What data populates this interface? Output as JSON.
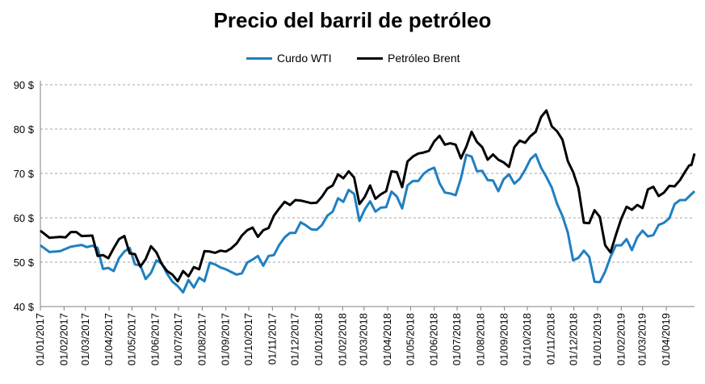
{
  "chart_data": {
    "type": "line",
    "title": "Precio del barril de petróleo",
    "xlabel": "",
    "ylabel": "",
    "ylim": [
      40,
      90
    ],
    "y_ticks": [
      "40 $",
      "50 $",
      "60 $",
      "70 $",
      "80 $",
      "90 $"
    ],
    "x_ticks": [
      "01/01/2017",
      "01/02/2017",
      "01/03/2017",
      "01/04/2017",
      "01/05/2017",
      "01/06/2017",
      "01/07/2017",
      "01/08/2017",
      "01/09/2017",
      "01/10/2017",
      "01/11/2017",
      "01/12/2017",
      "01/01/2018",
      "01/02/2018",
      "01/03/2018",
      "01/04/2018",
      "01/05/2018",
      "01/06/2018",
      "01/07/2018",
      "01/08/2018",
      "01/09/2018",
      "01/10/2018",
      "01/11/2018",
      "01/12/2018",
      "01/01/2019",
      "01/02/2019",
      "01/03/2019",
      "01/04/2019"
    ],
    "grid": "horizontal dashed",
    "legend_position": "top",
    "x_range": [
      "2017-01-01",
      "2019-05-08"
    ],
    "series": [
      {
        "name": "Curdo WTI",
        "color": "#1f7fc2",
        "points": [
          [
            "2017-01-01",
            53.8
          ],
          [
            "2017-01-13",
            52.3
          ],
          [
            "2017-01-27",
            52.5
          ],
          [
            "2017-02-10",
            53.5
          ],
          [
            "2017-02-24",
            53.9
          ],
          [
            "2017-03-03",
            53.4
          ],
          [
            "2017-03-10",
            53.7
          ],
          [
            "2017-03-17",
            53.2
          ],
          [
            "2017-03-24",
            48.5
          ],
          [
            "2017-03-31",
            48.7
          ],
          [
            "2017-04-07",
            48.0
          ],
          [
            "2017-04-14",
            50.9
          ],
          [
            "2017-04-21",
            52.4
          ],
          [
            "2017-04-28",
            53.2
          ],
          [
            "2017-05-05",
            49.5
          ],
          [
            "2017-05-12",
            49.3
          ],
          [
            "2017-05-19",
            46.2
          ],
          [
            "2017-05-26",
            47.6
          ],
          [
            "2017-06-02",
            50.4
          ],
          [
            "2017-06-09",
            49.7
          ],
          [
            "2017-06-16",
            47.4
          ],
          [
            "2017-06-23",
            45.6
          ],
          [
            "2017-06-30",
            44.6
          ],
          [
            "2017-07-07",
            43.2
          ],
          [
            "2017-07-14",
            46.0
          ],
          [
            "2017-07-21",
            44.3
          ],
          [
            "2017-07-28",
            46.5
          ],
          [
            "2017-08-04",
            45.7
          ],
          [
            "2017-08-11",
            49.9
          ],
          [
            "2017-08-18",
            49.5
          ],
          [
            "2017-08-25",
            48.8
          ],
          [
            "2017-09-01",
            48.4
          ],
          [
            "2017-09-08",
            47.8
          ],
          [
            "2017-09-15",
            47.2
          ],
          [
            "2017-09-22",
            47.5
          ],
          [
            "2017-09-29",
            49.9
          ],
          [
            "2017-10-06",
            50.6
          ],
          [
            "2017-10-13",
            51.4
          ],
          [
            "2017-10-20",
            49.2
          ],
          [
            "2017-10-27",
            51.4
          ],
          [
            "2017-11-03",
            51.6
          ],
          [
            "2017-11-10",
            53.9
          ],
          [
            "2017-11-17",
            55.6
          ],
          [
            "2017-11-24",
            56.6
          ],
          [
            "2017-12-01",
            56.6
          ],
          [
            "2017-12-08",
            59.0
          ],
          [
            "2017-12-15",
            58.3
          ],
          [
            "2017-12-22",
            57.4
          ],
          [
            "2017-12-29",
            57.3
          ],
          [
            "2018-01-05",
            58.4
          ],
          [
            "2018-01-12",
            60.5
          ],
          [
            "2018-01-19",
            61.4
          ],
          [
            "2018-01-26",
            64.4
          ],
          [
            "2018-02-02",
            63.6
          ],
          [
            "2018-02-09",
            66.3
          ],
          [
            "2018-02-16",
            65.4
          ],
          [
            "2018-02-23",
            59.3
          ],
          [
            "2018-03-02",
            61.9
          ],
          [
            "2018-03-09",
            63.7
          ],
          [
            "2018-03-16",
            61.4
          ],
          [
            "2018-03-23",
            62.3
          ],
          [
            "2018-03-30",
            62.4
          ],
          [
            "2018-04-06",
            65.9
          ],
          [
            "2018-04-13",
            64.8
          ],
          [
            "2018-04-20",
            62.1
          ],
          [
            "2018-04-27",
            67.3
          ],
          [
            "2018-05-04",
            68.3
          ],
          [
            "2018-05-11",
            68.3
          ],
          [
            "2018-05-18",
            69.9
          ],
          [
            "2018-05-25",
            70.8
          ],
          [
            "2018-06-01",
            71.3
          ],
          [
            "2018-06-08",
            67.8
          ],
          [
            "2018-06-15",
            65.7
          ],
          [
            "2018-06-22",
            65.5
          ],
          [
            "2018-06-29",
            65.1
          ],
          [
            "2018-07-06",
            68.9
          ],
          [
            "2018-07-13",
            74.2
          ],
          [
            "2018-07-20",
            73.8
          ],
          [
            "2018-07-27",
            70.5
          ],
          [
            "2018-08-03",
            70.6
          ],
          [
            "2018-08-10",
            68.5
          ],
          [
            "2018-08-17",
            68.4
          ],
          [
            "2018-08-24",
            66.0
          ],
          [
            "2018-08-31",
            68.7
          ],
          [
            "2018-09-07",
            69.8
          ],
          [
            "2018-09-14",
            67.7
          ],
          [
            "2018-09-21",
            68.8
          ],
          [
            "2018-09-28",
            70.8
          ],
          [
            "2018-10-05",
            73.2
          ],
          [
            "2018-10-12",
            74.3
          ],
          [
            "2018-10-19",
            71.3
          ],
          [
            "2018-10-26",
            69.2
          ],
          [
            "2018-11-02",
            66.8
          ],
          [
            "2018-11-09",
            63.1
          ],
          [
            "2018-11-16",
            60.4
          ],
          [
            "2018-11-23",
            56.7
          ],
          [
            "2018-11-30",
            50.4
          ],
          [
            "2018-12-07",
            51.0
          ],
          [
            "2018-12-14",
            52.6
          ],
          [
            "2018-12-21",
            51.2
          ],
          [
            "2018-12-28",
            45.6
          ],
          [
            "2019-01-04",
            45.5
          ],
          [
            "2019-01-11",
            47.9
          ],
          [
            "2019-01-18",
            51.2
          ],
          [
            "2019-01-25",
            53.8
          ],
          [
            "2019-02-01",
            53.8
          ],
          [
            "2019-02-08",
            55.2
          ],
          [
            "2019-02-15",
            52.7
          ],
          [
            "2019-02-22",
            55.6
          ],
          [
            "2019-03-01",
            57.1
          ],
          [
            "2019-03-08",
            55.8
          ],
          [
            "2019-03-15",
            56.1
          ],
          [
            "2019-03-22",
            58.4
          ],
          [
            "2019-03-29",
            58.9
          ],
          [
            "2019-04-05",
            59.9
          ],
          [
            "2019-04-12",
            63.1
          ],
          [
            "2019-04-19",
            64.0
          ],
          [
            "2019-04-26",
            64.0
          ],
          [
            "2019-05-08",
            66.0
          ]
        ]
      },
      {
        "name": "Petróleo Brent",
        "color": "#000000",
        "points": [
          [
            "2017-01-01",
            57.1
          ],
          [
            "2017-01-13",
            55.5
          ],
          [
            "2017-01-27",
            55.7
          ],
          [
            "2017-02-03",
            55.6
          ],
          [
            "2017-02-10",
            56.8
          ],
          [
            "2017-02-17",
            56.8
          ],
          [
            "2017-02-24",
            55.9
          ],
          [
            "2017-03-10",
            56.0
          ],
          [
            "2017-03-17",
            51.4
          ],
          [
            "2017-03-24",
            51.6
          ],
          [
            "2017-03-31",
            50.9
          ],
          [
            "2017-04-07",
            53.1
          ],
          [
            "2017-04-14",
            55.2
          ],
          [
            "2017-04-21",
            55.9
          ],
          [
            "2017-04-28",
            52.0
          ],
          [
            "2017-05-05",
            51.8
          ],
          [
            "2017-05-12",
            49.0
          ],
          [
            "2017-05-19",
            50.7
          ],
          [
            "2017-05-26",
            53.6
          ],
          [
            "2017-06-02",
            52.2
          ],
          [
            "2017-06-09",
            49.6
          ],
          [
            "2017-06-16",
            48.0
          ],
          [
            "2017-06-23",
            47.2
          ],
          [
            "2017-06-30",
            45.7
          ],
          [
            "2017-07-07",
            48.0
          ],
          [
            "2017-07-14",
            46.8
          ],
          [
            "2017-07-21",
            48.9
          ],
          [
            "2017-07-28",
            48.4
          ],
          [
            "2017-08-04",
            52.5
          ],
          [
            "2017-08-11",
            52.4
          ],
          [
            "2017-08-18",
            52.1
          ],
          [
            "2017-08-25",
            52.6
          ],
          [
            "2017-09-01",
            52.4
          ],
          [
            "2017-09-08",
            53.1
          ],
          [
            "2017-09-15",
            54.2
          ],
          [
            "2017-09-22",
            56.0
          ],
          [
            "2017-09-29",
            57.2
          ],
          [
            "2017-10-06",
            57.8
          ],
          [
            "2017-10-13",
            55.7
          ],
          [
            "2017-10-20",
            57.2
          ],
          [
            "2017-10-27",
            57.7
          ],
          [
            "2017-11-03",
            60.5
          ],
          [
            "2017-11-10",
            62.1
          ],
          [
            "2017-11-17",
            63.6
          ],
          [
            "2017-11-24",
            62.9
          ],
          [
            "2017-12-01",
            64.0
          ],
          [
            "2017-12-08",
            63.9
          ],
          [
            "2017-12-15",
            63.6
          ],
          [
            "2017-12-22",
            63.3
          ],
          [
            "2017-12-29",
            63.4
          ],
          [
            "2018-01-05",
            64.8
          ],
          [
            "2018-01-12",
            66.6
          ],
          [
            "2018-01-19",
            67.3
          ],
          [
            "2018-01-26",
            69.8
          ],
          [
            "2018-02-02",
            68.9
          ],
          [
            "2018-02-09",
            70.5
          ],
          [
            "2018-02-16",
            69.1
          ],
          [
            "2018-02-23",
            63.1
          ],
          [
            "2018-03-02",
            64.7
          ],
          [
            "2018-03-09",
            67.3
          ],
          [
            "2018-03-16",
            64.3
          ],
          [
            "2018-03-23",
            65.3
          ],
          [
            "2018-03-30",
            66.0
          ],
          [
            "2018-04-06",
            70.5
          ],
          [
            "2018-04-13",
            70.3
          ],
          [
            "2018-04-20",
            66.9
          ],
          [
            "2018-04-27",
            72.7
          ],
          [
            "2018-05-04",
            73.8
          ],
          [
            "2018-05-11",
            74.5
          ],
          [
            "2018-05-18",
            74.7
          ],
          [
            "2018-05-25",
            75.1
          ],
          [
            "2018-06-01",
            77.2
          ],
          [
            "2018-06-08",
            78.5
          ],
          [
            "2018-06-15",
            76.5
          ],
          [
            "2018-06-22",
            76.8
          ],
          [
            "2018-06-29",
            76.5
          ],
          [
            "2018-07-06",
            73.4
          ],
          [
            "2018-07-13",
            76.0
          ],
          [
            "2018-07-20",
            79.4
          ],
          [
            "2018-07-27",
            77.1
          ],
          [
            "2018-08-03",
            75.9
          ],
          [
            "2018-08-10",
            73.1
          ],
          [
            "2018-08-17",
            74.3
          ],
          [
            "2018-08-24",
            73.1
          ],
          [
            "2018-08-31",
            72.5
          ],
          [
            "2018-09-07",
            71.5
          ],
          [
            "2018-09-14",
            75.9
          ],
          [
            "2018-09-21",
            77.4
          ],
          [
            "2018-09-28",
            76.9
          ],
          [
            "2018-10-05",
            78.4
          ],
          [
            "2018-10-12",
            79.4
          ],
          [
            "2018-10-19",
            82.7
          ],
          [
            "2018-10-26",
            84.2
          ],
          [
            "2018-11-02",
            80.6
          ],
          [
            "2018-11-09",
            79.5
          ],
          [
            "2018-11-16",
            77.6
          ],
          [
            "2018-11-23",
            72.8
          ],
          [
            "2018-11-30",
            70.3
          ],
          [
            "2018-12-07",
            66.7
          ],
          [
            "2018-12-14",
            58.9
          ],
          [
            "2018-12-21",
            58.8
          ],
          [
            "2018-12-28",
            61.7
          ],
          [
            "2019-01-04",
            60.2
          ],
          [
            "2019-01-11",
            53.8
          ],
          [
            "2019-01-18",
            52.2
          ],
          [
            "2019-01-25",
            56.1
          ],
          [
            "2019-02-01",
            59.8
          ],
          [
            "2019-02-08",
            62.5
          ],
          [
            "2019-02-15",
            61.8
          ],
          [
            "2019-02-22",
            62.9
          ],
          [
            "2019-03-01",
            62.2
          ],
          [
            "2019-03-08",
            66.4
          ],
          [
            "2019-03-15",
            67.0
          ],
          [
            "2019-03-22",
            64.9
          ],
          [
            "2019-03-29",
            65.7
          ],
          [
            "2019-04-05",
            67.2
          ],
          [
            "2019-04-12",
            67.1
          ],
          [
            "2019-04-19",
            68.5
          ],
          [
            "2019-04-26",
            70.5
          ],
          [
            "2019-05-01",
            71.8
          ],
          [
            "2019-05-04",
            71.9
          ],
          [
            "2019-05-08",
            74.5
          ]
        ]
      }
    ]
  }
}
